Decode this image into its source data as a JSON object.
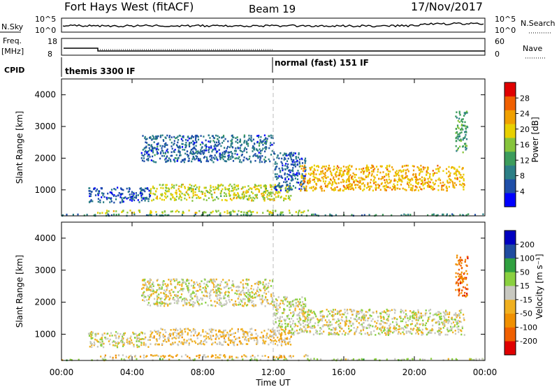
{
  "header": {
    "station": "Fort Hays West (fitACF)",
    "beam": "Beam 19",
    "date": "17/Nov/2017"
  },
  "params": {
    "nsky_label": "N.Sky",
    "nsearch_label": "N.Search",
    "nsky_ticks": [
      "10^5",
      "10^0"
    ],
    "nsearch_ticks": [
      "10^5",
      "10^0"
    ],
    "freq_label": "Freq.",
    "freq_unit": "[MHz]",
    "freq_ticks": [
      "18",
      "8"
    ],
    "nave_label": "Nave",
    "nave_ticks": [
      "60",
      "0"
    ],
    "cpid_label": "CPID",
    "cpid_modes": [
      {
        "name": "themis 3300 IF",
        "start_hour": 0
      },
      {
        "name": "normal (fast) 151 IF",
        "start_hour": 12
      }
    ]
  },
  "axes": {
    "xlabel": "Time UT",
    "ylabel": "Slant Range [km]",
    "xticks": [
      "00:00",
      "04:00",
      "08:00",
      "12:00",
      "16:00",
      "20:00",
      "00:00"
    ],
    "yticks": [
      "1000",
      "2000",
      "3000",
      "4000"
    ]
  },
  "colorbars": {
    "power_label": "Power [dB]",
    "power_ticks": [
      "4",
      "8",
      "12",
      "16",
      "20",
      "24",
      "28"
    ],
    "velocity_label": "Velocity [m s⁻¹]",
    "velocity_ticks": [
      "-200",
      "-100",
      "-50",
      "-15",
      "15",
      "50",
      "100",
      "200"
    ]
  },
  "colors": {
    "power_scale": [
      "#0000ff",
      "#1f4fa8",
      "#2c7f86",
      "#3c9c5c",
      "#86c43c",
      "#e8d000",
      "#f0a000",
      "#f06000",
      "#e00000"
    ],
    "velocity_scale": [
      "#e00000",
      "#f06000",
      "#f09000",
      "#f0b020",
      "#c8c8c0",
      "#8ad040",
      "#30a040",
      "#204ca0",
      "#0000c0"
    ]
  },
  "chart_data": [
    {
      "type": "heatmap",
      "name": "power",
      "x_range_hours": [
        0,
        24
      ],
      "y_range_km": [
        180,
        4500
      ],
      "value_range_db": [
        0,
        32
      ],
      "bands": [
        {
          "t0": 0.0,
          "t1": 24.0,
          "r0": 210,
          "r1": 260,
          "v": 10
        },
        {
          "t0": 2.0,
          "t1": 14.0,
          "r0": 290,
          "r1": 380,
          "v": 18
        },
        {
          "t0": 1.5,
          "t1": 5.0,
          "r0": 620,
          "r1": 1100,
          "v": 6
        },
        {
          "t0": 5.0,
          "t1": 13.0,
          "r0": 680,
          "r1": 1200,
          "v": 18
        },
        {
          "t0": 4.5,
          "t1": 12.0,
          "r0": 1900,
          "r1": 2750,
          "v": 7
        },
        {
          "t0": 12.0,
          "t1": 13.8,
          "r0": 1000,
          "r1": 2200,
          "v": 6
        },
        {
          "t0": 13.5,
          "t1": 22.8,
          "r0": 1000,
          "r1": 1800,
          "v": 22
        },
        {
          "t0": 22.3,
          "t1": 23.0,
          "r0": 2200,
          "r1": 3500,
          "v": 12
        }
      ]
    },
    {
      "type": "heatmap",
      "name": "velocity",
      "x_range_hours": [
        0,
        24
      ],
      "y_range_km": [
        180,
        4500
      ],
      "value_range_ms": [
        -250,
        250
      ],
      "bands": [
        {
          "t0": 0.0,
          "t1": 24.0,
          "r0": 210,
          "r1": 260,
          "v": 30
        },
        {
          "t0": 2.0,
          "t1": 14.0,
          "r0": 290,
          "r1": 380,
          "v": -60
        },
        {
          "t0": 1.5,
          "t1": 5.0,
          "r0": 620,
          "r1": 1100,
          "v": 0
        },
        {
          "t0": 5.0,
          "t1": 13.0,
          "r0": 680,
          "r1": 1200,
          "v": -40
        },
        {
          "t0": 4.5,
          "t1": 12.0,
          "r0": 1900,
          "r1": 2750,
          "v": 0
        },
        {
          "t0": 12.0,
          "t1": 13.8,
          "r0": 1000,
          "r1": 2200,
          "v": 0
        },
        {
          "t0": 13.5,
          "t1": 22.8,
          "r0": 1000,
          "r1": 1800,
          "v": 0
        },
        {
          "t0": 22.3,
          "t1": 23.0,
          "r0": 2200,
          "r1": 3500,
          "v": -150
        }
      ]
    }
  ]
}
